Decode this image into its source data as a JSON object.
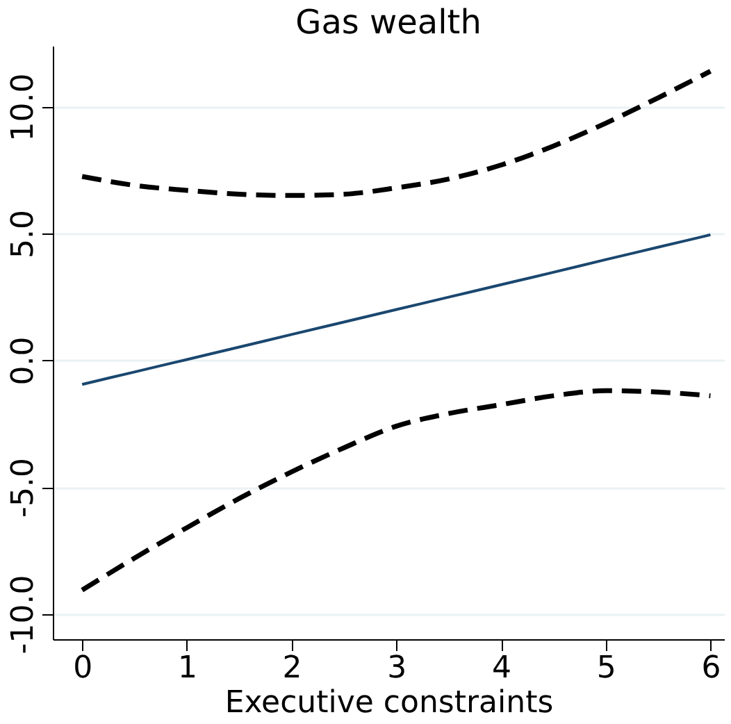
{
  "chart_data": {
    "type": "line",
    "title": "Gas wealth",
    "xlabel": "Executive constraints",
    "x": [
      0,
      0.5,
      1,
      1.5,
      2,
      2.5,
      3,
      3.5,
      4,
      4.5,
      5,
      5.5,
      6
    ],
    "series": [
      {
        "color": "#1a476f",
        "line_style": "solid",
        "values": [
          -0.95,
          -0.46,
          0.03,
          0.52,
          1.02,
          1.51,
          2.0,
          2.49,
          2.98,
          3.47,
          3.97,
          4.46,
          4.95
        ]
      },
      {
        "color": "#000000",
        "line_style": "dashed",
        "values": [
          7.25,
          6.9,
          6.7,
          6.55,
          6.5,
          6.55,
          6.8,
          7.15,
          7.7,
          8.45,
          9.35,
          10.35,
          11.4
        ]
      },
      {
        "color": "#000000",
        "line_style": "dashed",
        "values": [
          -9.06,
          -7.8,
          -6.6,
          -5.45,
          -4.4,
          -3.45,
          -2.6,
          -2.1,
          -1.75,
          -1.4,
          -1.2,
          -1.25,
          -1.4
        ]
      }
    ],
    "xlim": [
      -0.28,
      6.13
    ],
    "ylim": [
      -11.0,
      12.4
    ],
    "xticks": [
      0,
      1,
      2,
      3,
      4,
      5,
      6
    ],
    "yticks": [
      {
        "value": -10,
        "label": "-10.0"
      },
      {
        "value": -5,
        "label": "-5.0"
      },
      {
        "value": 0,
        "label": "0.0"
      },
      {
        "value": 5,
        "label": "5.0"
      },
      {
        "value": 10,
        "label": "10.0"
      }
    ],
    "grid": "y"
  }
}
